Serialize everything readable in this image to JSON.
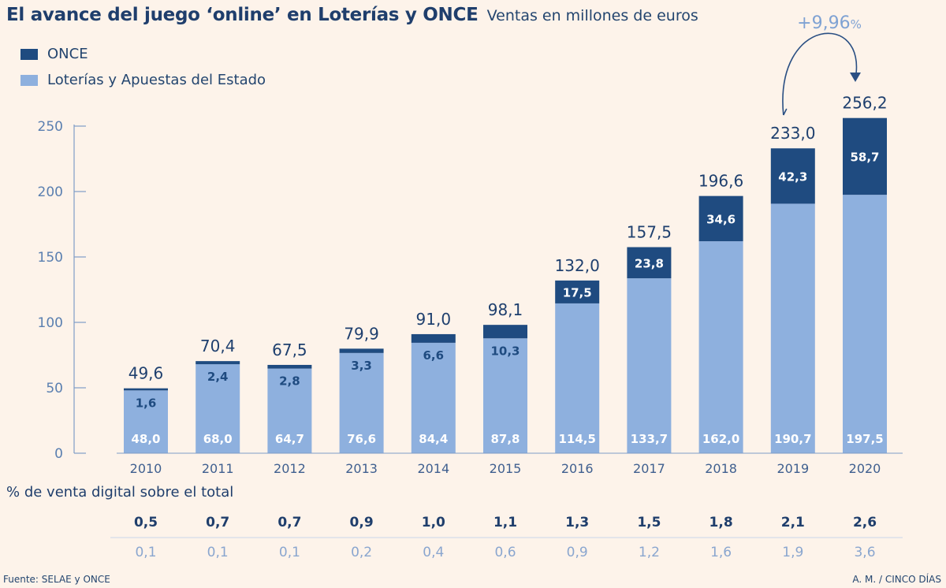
{
  "header": {
    "title": "El avance del juego ‘online’ en Loterías y ONCE",
    "subtitle": "Ventas en millones de euros"
  },
  "colors": {
    "once": "#1f4b80",
    "loterias": "#8eb0de",
    "text": "#1e3f6e",
    "axis": "#7f9dc7"
  },
  "chart_data": {
    "type": "bar",
    "stacked": true,
    "categories": [
      "2010",
      "2011",
      "2012",
      "2013",
      "2014",
      "2015",
      "2016",
      "2017",
      "2018",
      "2019",
      "2020"
    ],
    "series": [
      {
        "name": "Loterías y Apuestas del Estado",
        "values": [
          48.0,
          68.0,
          64.7,
          76.6,
          84.4,
          87.8,
          114.5,
          133.7,
          162.0,
          190.7,
          197.5
        ],
        "labels": [
          "48,0",
          "68,0",
          "64,7",
          "76,6",
          "84,4",
          "87,8",
          "114,5",
          "133,7",
          "162,0",
          "190,7",
          "197,5"
        ]
      },
      {
        "name": "ONCE",
        "values": [
          1.6,
          2.4,
          2.8,
          3.3,
          6.6,
          10.3,
          17.5,
          23.8,
          34.6,
          42.3,
          58.7
        ],
        "labels": [
          "1,6",
          "2,4",
          "2,8",
          "3,3",
          "6,6",
          "10,3",
          "17,5",
          "23,8",
          "34,6",
          "42,3",
          "58,7"
        ]
      }
    ],
    "totals": [
      49.6,
      70.4,
      67.5,
      79.9,
      91.0,
      98.1,
      132.0,
      157.5,
      196.6,
      233.0,
      256.2
    ],
    "total_labels": [
      "49,6",
      "70,4",
      "67,5",
      "79,9",
      "91,0",
      "98,1",
      "132,0",
      "157,5",
      "196,6",
      "233,0",
      "256,2"
    ],
    "ylim": [
      0,
      250
    ],
    "yticks": [
      0,
      50,
      100,
      150,
      200,
      250
    ],
    "ytick_labels": [
      "0",
      "50",
      "100",
      "150",
      "200",
      "250"
    ],
    "legend": [
      "ONCE",
      "Loterías y Apuestas del Estado"
    ],
    "annotation": {
      "from": "2019",
      "to": "2020",
      "value": "+9,96",
      "unit": "%"
    },
    "table": {
      "title": "% de venta digital sobre el total",
      "rows": [
        [
          "0,5",
          "0,7",
          "0,7",
          "0,9",
          "1,0",
          "1,1",
          "1,3",
          "1,5",
          "1,8",
          "2,1",
          "2,6"
        ],
        [
          "0,1",
          "0,1",
          "0,1",
          "0,2",
          "0,4",
          "0,6",
          "0,9",
          "1,2",
          "1,6",
          "1,9",
          "3,6"
        ]
      ]
    }
  },
  "footer": {
    "source": "Fuente: SELAE y ONCE",
    "credit": "A. M. / CINCO DÍAS"
  }
}
